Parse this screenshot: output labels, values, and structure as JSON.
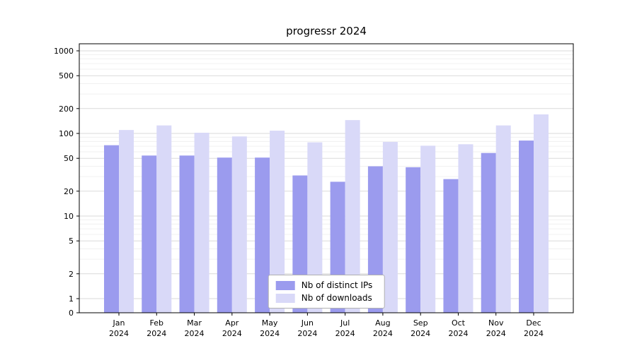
{
  "chart_data": {
    "type": "bar",
    "title": "progressr 2024",
    "categories": [
      "Jan",
      "Feb",
      "Mar",
      "Apr",
      "May",
      "Jun",
      "Jul",
      "Aug",
      "Sep",
      "Oct",
      "Nov",
      "Dec"
    ],
    "x_tick_second_line": "2024",
    "yscale": "symlog",
    "yticks": [
      0,
      1,
      2,
      5,
      10,
      20,
      50,
      100,
      200,
      500,
      1000
    ],
    "ylim": [
      0,
      1100
    ],
    "grid": true,
    "legend_position": "bottom-center",
    "series": [
      {
        "name": "Nb of distinct IPs",
        "color": "#9b9bee",
        "values": [
          72,
          54,
          54,
          51,
          51,
          31,
          26,
          40,
          39,
          28,
          58,
          82
        ]
      },
      {
        "name": "Nb of downloads",
        "color": "#d9d9f8",
        "values": [
          110,
          125,
          102,
          92,
          108,
          78,
          145,
          79,
          71,
          74,
          125,
          170
        ]
      }
    ]
  }
}
